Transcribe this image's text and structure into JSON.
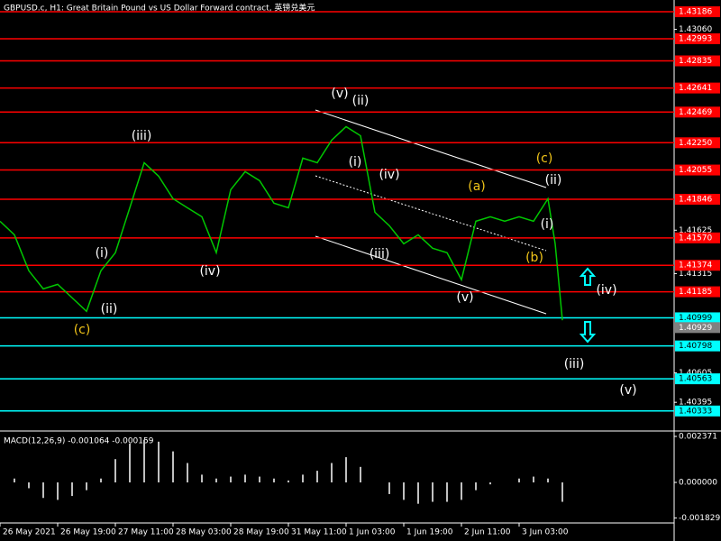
{
  "chart_data": {
    "type": "line",
    "title": "GBPUSD.c, H1:  Great Britain Pound vs US Dollar Forward contract, 英镑兑美元",
    "color": "#00c800",
    "x": [
      0,
      4,
      8,
      12,
      16,
      20,
      24,
      28,
      32,
      36,
      40,
      44,
      48,
      52,
      56,
      60,
      64,
      68,
      72,
      76,
      80,
      84,
      88,
      92,
      96,
      100,
      104,
      108,
      112,
      116,
      120,
      124,
      128,
      132,
      136,
      140,
      144,
      148,
      152,
      154,
      156
    ],
    "values": [
      1.41689,
      1.41592,
      1.41335,
      1.41206,
      1.41238,
      1.41142,
      1.41045,
      1.41335,
      1.41464,
      1.41785,
      1.42107,
      1.42011,
      1.4185,
      1.41785,
      1.41721,
      1.41464,
      1.41914,
      1.42043,
      1.41979,
      1.41818,
      1.41785,
      1.4214,
      1.42107,
      1.42268,
      1.42365,
      1.423,
      1.41753,
      1.41657,
      1.41528,
      1.41592,
      1.41496,
      1.41464,
      1.41271,
      1.41689,
      1.41721,
      1.41689,
      1.41721,
      1.41689,
      1.4185,
      1.41528,
      1.40981
    ],
    "xlim": [
      0,
      187
    ],
    "xticks": [
      {
        "value": 0,
        "label": "26 May 2021"
      },
      {
        "value": 16,
        "label": "26 May 19:00"
      },
      {
        "value": 32,
        "label": "27 May 11:00"
      },
      {
        "value": 48,
        "label": "28 May 03:00"
      },
      {
        "value": 64,
        "label": "28 May 19:00"
      },
      {
        "value": 80,
        "label": "31 May 11:00"
      },
      {
        "value": 96,
        "label": "1 Jun 03:00"
      },
      {
        "value": 112,
        "label": "1 Jun 19:00"
      },
      {
        "value": 128,
        "label": "2 Jun 11:00"
      },
      {
        "value": 144,
        "label": "3 Jun 03:00"
      }
    ],
    "ylim": [
      1.4019,
      1.4327
    ],
    "yticks": [
      {
        "value": 1.4306,
        "label": "1.43060"
      },
      {
        "value": 1.41625,
        "label": "1.41625"
      },
      {
        "value": 1.41315,
        "label": "1.41315"
      },
      {
        "value": 1.40605,
        "label": "1.40605"
      },
      {
        "value": 1.40395,
        "label": "1.40395"
      }
    ],
    "levels": [
      {
        "value": 1.43186,
        "label": "1.43186",
        "color": "#ff0000"
      },
      {
        "value": 1.42993,
        "label": "1.42993",
        "color": "#ff0000"
      },
      {
        "value": 1.42835,
        "label": "1.42835",
        "color": "#ff0000"
      },
      {
        "value": 1.42641,
        "label": "1.42641",
        "color": "#ff0000"
      },
      {
        "value": 1.42469,
        "label": "1.42469",
        "color": "#ff0000"
      },
      {
        "value": 1.4225,
        "label": "1.42250",
        "color": "#ff0000"
      },
      {
        "value": 1.42055,
        "label": "1.42055",
        "color": "#ff0000"
      },
      {
        "value": 1.41846,
        "label": "1.41846",
        "color": "#ff0000"
      },
      {
        "value": 1.4157,
        "label": "1.41570",
        "color": "#ff0000"
      },
      {
        "value": 1.41374,
        "label": "1.41374",
        "color": "#ff0000"
      },
      {
        "value": 1.41185,
        "label": "1.41185",
        "color": "#ff0000"
      },
      {
        "value": 1.40999,
        "label": "1.40999",
        "color": "#00ffff"
      },
      {
        "value": 1.40798,
        "label": "1.40798",
        "color": "#00ffff"
      },
      {
        "value": 1.40563,
        "label": "1.40563",
        "color": "#00ffff"
      },
      {
        "value": 1.40333,
        "label": "1.40333",
        "color": "#00ffff"
      }
    ],
    "current": {
      "value": 1.40929,
      "label": "1.40929"
    },
    "annotations": [
      {
        "text": "(v)",
        "color": "#ffffff"
      },
      {
        "text": "(ii)",
        "color": "#ffffff"
      },
      {
        "text": "(iii)",
        "color": "#ffffff"
      },
      {
        "text": "(i)",
        "color": "#ffffff"
      },
      {
        "text": "(ii)",
        "color": "#ffffff"
      },
      {
        "text": "(c)",
        "color": "#f0c419"
      },
      {
        "text": "(iv)",
        "color": "#ffffff"
      },
      {
        "text": "(i)",
        "color": "#ffffff"
      },
      {
        "text": "(iv)",
        "color": "#ffffff"
      },
      {
        "text": "(iii)",
        "color": "#ffffff"
      },
      {
        "text": "(v)",
        "color": "#ffffff"
      },
      {
        "text": "(a)",
        "color": "#f0c419"
      },
      {
        "text": "(c)",
        "color": "#f0c419"
      },
      {
        "text": "(ii)",
        "color": "#ffffff"
      },
      {
        "text": "(b)",
        "color": "#f0c419"
      },
      {
        "text": "(i)",
        "color": "#ffffff"
      },
      {
        "text": "(iv)",
        "color": "#ffffff"
      },
      {
        "text": "(iii)",
        "color": "#ffffff"
      },
      {
        "text": "(v)",
        "color": "#ffffff"
      }
    ],
    "indicator": {
      "type": "bar",
      "title": "MACD(12,26,9) -0.001064 -0.000159",
      "color": "#c0c0c0",
      "x": [
        0,
        4,
        8,
        12,
        16,
        20,
        24,
        28,
        32,
        36,
        40,
        44,
        48,
        52,
        56,
        60,
        64,
        68,
        72,
        76,
        80,
        84,
        88,
        92,
        96,
        100,
        104,
        108,
        112,
        116,
        120,
        124,
        128,
        132,
        136,
        140,
        144,
        148,
        152,
        156
      ],
      "values": [
        0,
        0.0002,
        -0.0003,
        -0.0008,
        -0.0009,
        -0.0007,
        -0.0004,
        0.0002,
        0.0012,
        0.002,
        0.0022,
        0.0021,
        0.0016,
        0.001,
        0.0004,
        0.0002,
        0.0003,
        0.0004,
        0.0003,
        0.0002,
        0.0001,
        0.0004,
        0.0006,
        0.001,
        0.0013,
        0.0008,
        0,
        -0.0006,
        -0.0009,
        -0.0011,
        -0.001,
        -0.001,
        -0.0009,
        -0.0004,
        -0.0001,
        0,
        0.0002,
        0.0003,
        0.0002,
        -0.001
      ],
      "ylim": [
        -0.00288,
        0.00265
      ],
      "yticks": [
        {
          "value": 0.002371,
          "label": "0.002371"
        },
        {
          "value": 0,
          "label": "0.000000"
        },
        {
          "value": -0.001829,
          "label": "-0.001829"
        }
      ]
    }
  }
}
